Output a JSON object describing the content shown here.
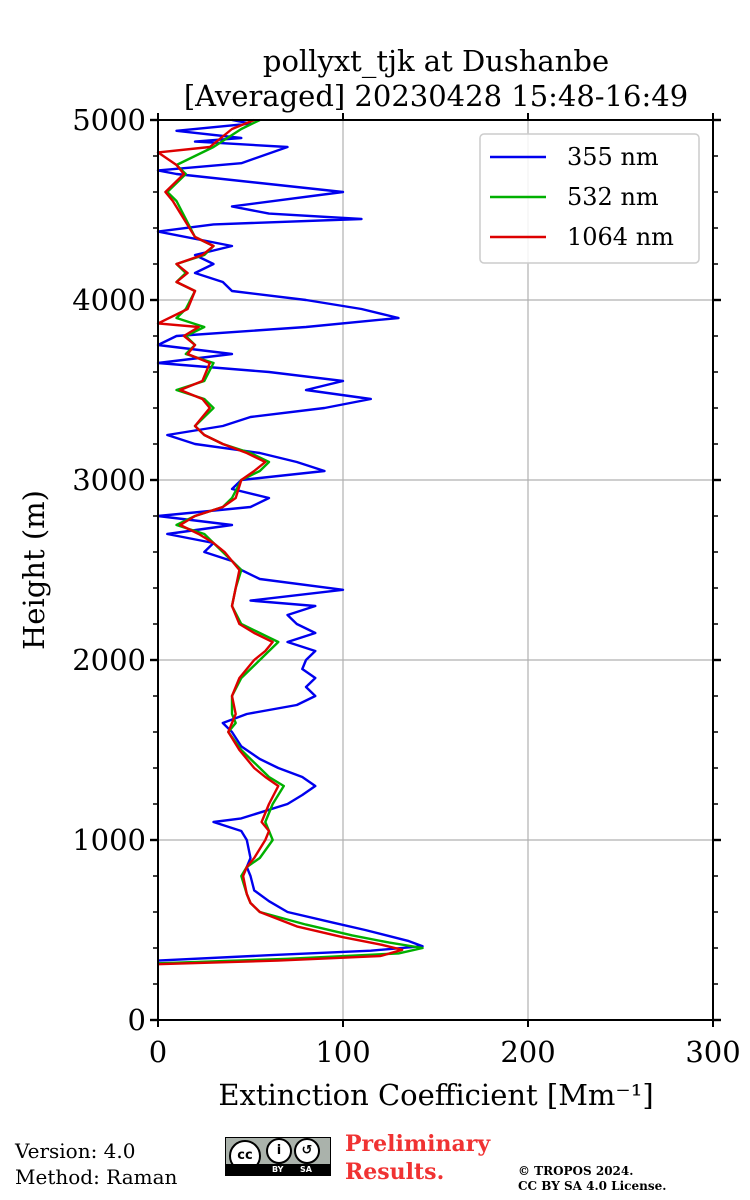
{
  "chart_data": {
    "type": "line",
    "title": "pollyxt_tjk at Dushanbe",
    "subtitle": "[Averaged] 20230428 15:48-16:49",
    "xlabel": "Extinction Coefficient [Mm⁻¹]",
    "ylabel": "Height (m)",
    "xlim": [
      0,
      300
    ],
    "ylim": [
      0,
      5000
    ],
    "xticks": [
      0,
      100,
      200,
      300
    ],
    "yticks": [
      0,
      1000,
      2000,
      3000,
      4000,
      5000
    ],
    "grid": true,
    "legend_position": "top-right",
    "series": [
      {
        "name": "355 nm",
        "color": "#0000ee",
        "points": [
          [
            0,
            330
          ],
          [
            60,
            360
          ],
          [
            115,
            385
          ],
          [
            143,
            410
          ],
          [
            135,
            440
          ],
          [
            112,
            500
          ],
          [
            95,
            540
          ],
          [
            70,
            600
          ],
          [
            60,
            660
          ],
          [
            52,
            720
          ],
          [
            50,
            800
          ],
          [
            48,
            850
          ],
          [
            50,
            900
          ],
          [
            48,
            1000
          ],
          [
            45,
            1050
          ],
          [
            30,
            1100
          ],
          [
            45,
            1120
          ],
          [
            70,
            1200
          ],
          [
            78,
            1250
          ],
          [
            85,
            1300
          ],
          [
            78,
            1350
          ],
          [
            65,
            1400
          ],
          [
            55,
            1450
          ],
          [
            45,
            1520
          ],
          [
            40,
            1600
          ],
          [
            35,
            1650
          ],
          [
            48,
            1700
          ],
          [
            75,
            1750
          ],
          [
            85,
            1800
          ],
          [
            80,
            1850
          ],
          [
            85,
            1900
          ],
          [
            78,
            1950
          ],
          [
            80,
            2000
          ],
          [
            85,
            2050
          ],
          [
            70,
            2100
          ],
          [
            85,
            2150
          ],
          [
            75,
            2200
          ],
          [
            70,
            2250
          ],
          [
            85,
            2300
          ],
          [
            50,
            2330
          ],
          [
            100,
            2390
          ],
          [
            55,
            2450
          ],
          [
            45,
            2500
          ],
          [
            40,
            2550
          ],
          [
            25,
            2600
          ],
          [
            30,
            2650
          ],
          [
            5,
            2700
          ],
          [
            40,
            2750
          ],
          [
            0,
            2800
          ],
          [
            50,
            2850
          ],
          [
            60,
            2900
          ],
          [
            40,
            2950
          ],
          [
            45,
            3000
          ],
          [
            90,
            3050
          ],
          [
            75,
            3100
          ],
          [
            55,
            3150
          ],
          [
            20,
            3200
          ],
          [
            5,
            3250
          ],
          [
            35,
            3300
          ],
          [
            50,
            3350
          ],
          [
            90,
            3400
          ],
          [
            115,
            3450
          ],
          [
            80,
            3500
          ],
          [
            100,
            3550
          ],
          [
            60,
            3600
          ],
          [
            0,
            3650
          ],
          [
            40,
            3700
          ],
          [
            0,
            3750
          ],
          [
            10,
            3800
          ],
          [
            80,
            3850
          ],
          [
            130,
            3900
          ],
          [
            110,
            3950
          ],
          [
            80,
            4000
          ],
          [
            40,
            4050
          ],
          [
            35,
            4100
          ],
          [
            20,
            4150
          ],
          [
            30,
            4200
          ],
          [
            20,
            4250
          ],
          [
            40,
            4300
          ],
          [
            0,
            4380
          ],
          [
            30,
            4420
          ],
          [
            110,
            4450
          ],
          [
            60,
            4480
          ],
          [
            40,
            4520
          ],
          [
            100,
            4600
          ],
          [
            55,
            4650
          ],
          [
            10,
            4700
          ],
          [
            0,
            4720
          ],
          [
            45,
            4760
          ],
          [
            70,
            4850
          ],
          [
            20,
            4880
          ],
          [
            45,
            4900
          ],
          [
            10,
            4940
          ],
          [
            50,
            4980
          ],
          [
            40,
            5000
          ]
        ]
      },
      {
        "name": "532 nm",
        "color": "#00b000",
        "points": [
          [
            0,
            315
          ],
          [
            70,
            340
          ],
          [
            130,
            370
          ],
          [
            143,
            400
          ],
          [
            125,
            430
          ],
          [
            105,
            470
          ],
          [
            80,
            530
          ],
          [
            55,
            600
          ],
          [
            50,
            650
          ],
          [
            48,
            700
          ],
          [
            45,
            800
          ],
          [
            48,
            850
          ],
          [
            55,
            900
          ],
          [
            62,
            1000
          ],
          [
            60,
            1050
          ],
          [
            58,
            1100
          ],
          [
            62,
            1200
          ],
          [
            68,
            1300
          ],
          [
            60,
            1350
          ],
          [
            55,
            1400
          ],
          [
            50,
            1450
          ],
          [
            45,
            1500
          ],
          [
            38,
            1600
          ],
          [
            42,
            1650
          ],
          [
            40,
            1700
          ],
          [
            40,
            1800
          ],
          [
            45,
            1900
          ],
          [
            55,
            2000
          ],
          [
            60,
            2050
          ],
          [
            65,
            2100
          ],
          [
            55,
            2150
          ],
          [
            45,
            2200
          ],
          [
            40,
            2300
          ],
          [
            42,
            2400
          ],
          [
            45,
            2500
          ],
          [
            40,
            2550
          ],
          [
            35,
            2600
          ],
          [
            30,
            2650
          ],
          [
            25,
            2700
          ],
          [
            10,
            2750
          ],
          [
            20,
            2800
          ],
          [
            35,
            2850
          ],
          [
            40,
            2900
          ],
          [
            45,
            3000
          ],
          [
            55,
            3050
          ],
          [
            60,
            3100
          ],
          [
            50,
            3150
          ],
          [
            35,
            3200
          ],
          [
            25,
            3250
          ],
          [
            20,
            3300
          ],
          [
            30,
            3400
          ],
          [
            25,
            3450
          ],
          [
            10,
            3500
          ],
          [
            25,
            3550
          ],
          [
            30,
            3650
          ],
          [
            15,
            3700
          ],
          [
            20,
            3750
          ],
          [
            15,
            3800
          ],
          [
            25,
            3850
          ],
          [
            10,
            3900
          ],
          [
            15,
            3950
          ],
          [
            20,
            4050
          ],
          [
            10,
            4100
          ],
          [
            15,
            4150
          ],
          [
            10,
            4200
          ],
          [
            25,
            4250
          ],
          [
            30,
            4300
          ],
          [
            20,
            4350
          ],
          [
            15,
            4450
          ],
          [
            10,
            4550
          ],
          [
            5,
            4600
          ],
          [
            15,
            4700
          ],
          [
            10,
            4750
          ],
          [
            20,
            4800
          ],
          [
            30,
            4850
          ],
          [
            45,
            4950
          ],
          [
            55,
            5000
          ]
        ]
      },
      {
        "name": "1064 nm",
        "color": "#dd0000",
        "points": [
          [
            0,
            310
          ],
          [
            65,
            330
          ],
          [
            120,
            355
          ],
          [
            132,
            390
          ],
          [
            120,
            420
          ],
          [
            100,
            460
          ],
          [
            75,
            520
          ],
          [
            55,
            600
          ],
          [
            50,
            650
          ],
          [
            48,
            700
          ],
          [
            46,
            800
          ],
          [
            48,
            850
          ],
          [
            52,
            900
          ],
          [
            58,
            1000
          ],
          [
            60,
            1050
          ],
          [
            56,
            1100
          ],
          [
            60,
            1200
          ],
          [
            65,
            1300
          ],
          [
            58,
            1350
          ],
          [
            52,
            1400
          ],
          [
            48,
            1450
          ],
          [
            44,
            1500
          ],
          [
            38,
            1600
          ],
          [
            40,
            1650
          ],
          [
            42,
            1700
          ],
          [
            40,
            1800
          ],
          [
            44,
            1900
          ],
          [
            52,
            2000
          ],
          [
            58,
            2050
          ],
          [
            62,
            2100
          ],
          [
            52,
            2150
          ],
          [
            44,
            2200
          ],
          [
            40,
            2300
          ],
          [
            42,
            2400
          ],
          [
            44,
            2500
          ],
          [
            40,
            2550
          ],
          [
            36,
            2600
          ],
          [
            30,
            2650
          ],
          [
            22,
            2700
          ],
          [
            12,
            2750
          ],
          [
            20,
            2800
          ],
          [
            35,
            2850
          ],
          [
            42,
            2900
          ],
          [
            45,
            3000
          ],
          [
            52,
            3050
          ],
          [
            58,
            3100
          ],
          [
            48,
            3150
          ],
          [
            35,
            3200
          ],
          [
            25,
            3250
          ],
          [
            20,
            3300
          ],
          [
            28,
            3400
          ],
          [
            24,
            3450
          ],
          [
            12,
            3500
          ],
          [
            24,
            3550
          ],
          [
            28,
            3650
          ],
          [
            16,
            3700
          ],
          [
            20,
            3750
          ],
          [
            14,
            3800
          ],
          [
            22,
            3850
          ],
          [
            0,
            3870
          ],
          [
            16,
            3950
          ],
          [
            20,
            4050
          ],
          [
            10,
            4100
          ],
          [
            16,
            4150
          ],
          [
            10,
            4200
          ],
          [
            24,
            4250
          ],
          [
            30,
            4300
          ],
          [
            20,
            4350
          ],
          [
            14,
            4450
          ],
          [
            8,
            4550
          ],
          [
            4,
            4600
          ],
          [
            14,
            4700
          ],
          [
            10,
            4750
          ],
          [
            0,
            4820
          ],
          [
            28,
            4850
          ],
          [
            40,
            4950
          ],
          [
            52,
            5000
          ]
        ]
      }
    ]
  },
  "footer": {
    "version": "Version: 4.0",
    "method": "Method: Raman",
    "preliminary_line1": "Preliminary",
    "preliminary_line2": "Results.",
    "copyright_line1": "© TROPOS 2024.",
    "copyright_line2": "CC BY SA 4.0 License.",
    "badge_cc": "cc",
    "badge_by": "BY",
    "badge_sa": "SA",
    "badge_by_symbol": "i",
    "badge_sa_symbol": "↺"
  }
}
